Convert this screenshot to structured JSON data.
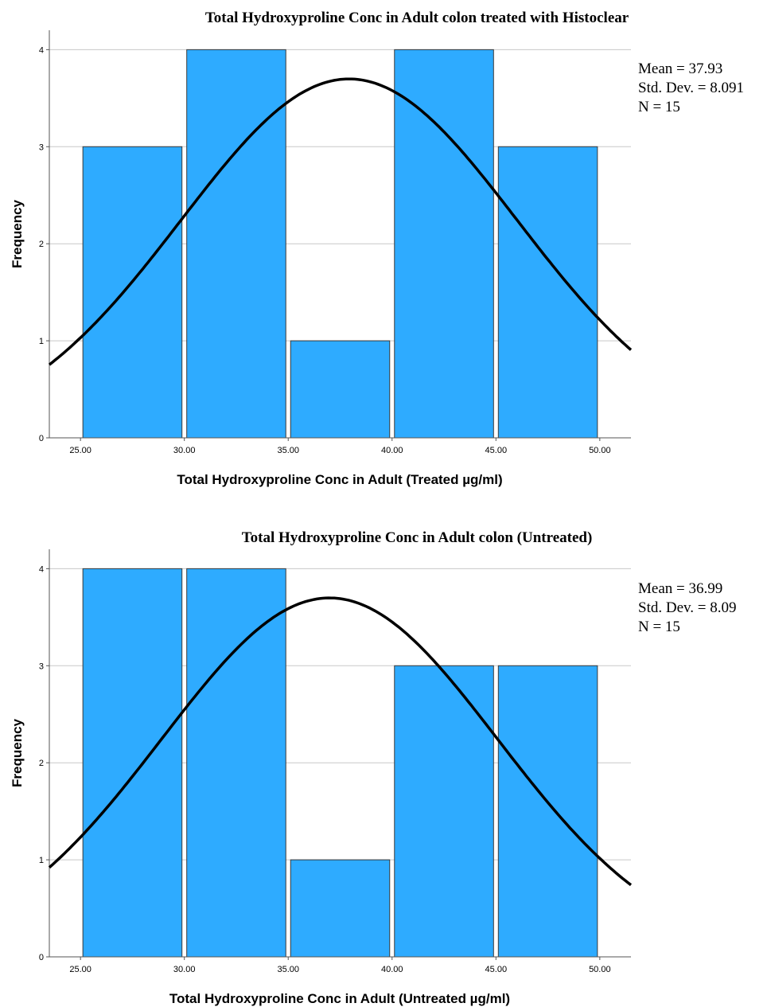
{
  "chart_data": [
    {
      "type": "bar",
      "title": "Total Hydroxyproline Conc in Adult  colon treated with Histoclear",
      "xlabel": "Total Hydroxyproline Conc in Adult  (Treated µg/ml)",
      "ylabel": "Frequency",
      "bins": [
        [
          25,
          30
        ],
        [
          30,
          35
        ],
        [
          35,
          40
        ],
        [
          40,
          45
        ],
        [
          45,
          50
        ]
      ],
      "values": [
        3,
        4,
        1,
        4,
        3
      ],
      "x_ticks": [
        "25.00",
        "30.00",
        "35.00",
        "40.00",
        "45.00",
        "50.00"
      ],
      "y_ticks": [
        "0",
        "1",
        "2",
        "3",
        "4"
      ],
      "xlim": [
        23.5,
        51.5
      ],
      "ylim": [
        0,
        4.2
      ],
      "normal_curve": {
        "mean": 37.93,
        "sd": 8.091,
        "n": 15,
        "bin_width": 5
      },
      "stats": [
        "Mean = 37.93",
        "Std. Dev. = 8.091",
        "N = 15"
      ],
      "bar_color": "#2eabff",
      "grid": true
    },
    {
      "type": "bar",
      "title": "Total Hydroxyproline Conc in Adult colon (Untreated)",
      "xlabel": "Total Hydroxyproline Conc in Adult (Untreated µg/ml)",
      "ylabel": "Frequency",
      "bins": [
        [
          25,
          30
        ],
        [
          30,
          35
        ],
        [
          35,
          40
        ],
        [
          40,
          45
        ],
        [
          45,
          50
        ]
      ],
      "values": [
        4,
        4,
        1,
        3,
        3
      ],
      "x_ticks": [
        "25.00",
        "30.00",
        "35.00",
        "40.00",
        "45.00",
        "50.00"
      ],
      "y_ticks": [
        "0",
        "1",
        "2",
        "3",
        "4"
      ],
      "xlim": [
        23.5,
        51.5
      ],
      "ylim": [
        0,
        4.2
      ],
      "normal_curve": {
        "mean": 36.99,
        "sd": 8.09,
        "n": 15,
        "bin_width": 5
      },
      "stats": [
        "Mean = 36.99",
        "Std. Dev. = 8.09",
        "N = 15"
      ],
      "bar_color": "#2eabff",
      "grid": true
    }
  ]
}
